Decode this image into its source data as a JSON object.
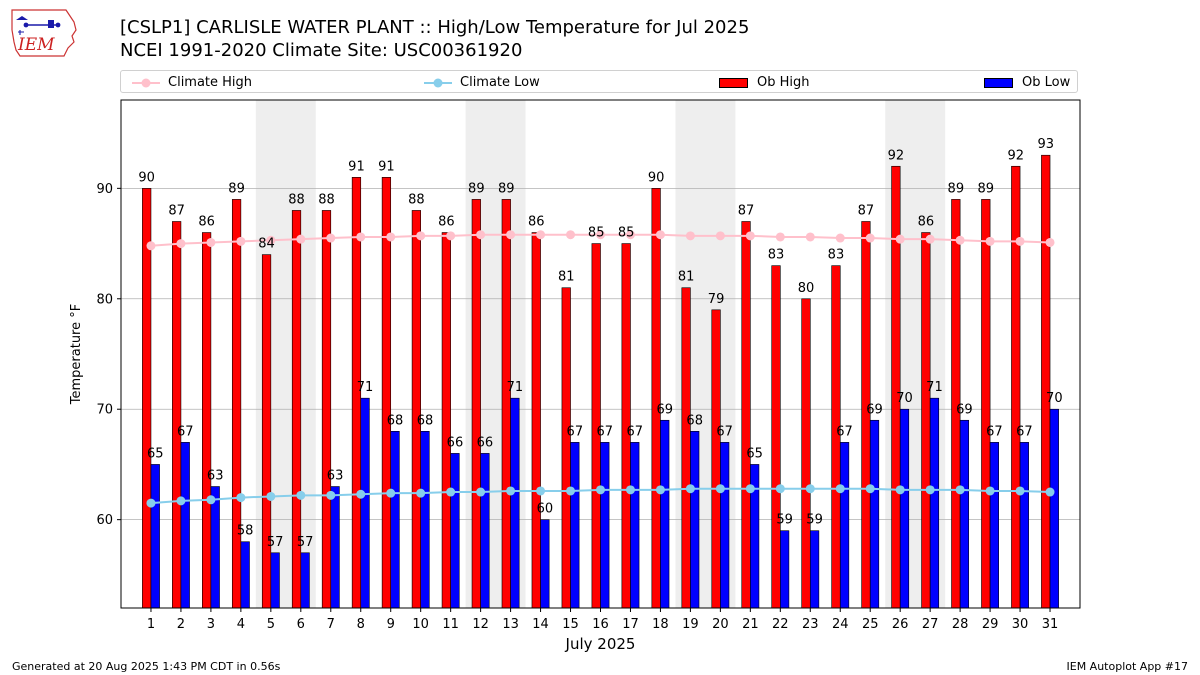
{
  "title_line1": "[CSLP1] CARLISLE WATER PLANT :: High/Low Temperature for Jul 2025",
  "title_line2": "NCEI 1991-2020 Climate Site: USC00361920",
  "logo_text": "IEM",
  "footer_left": "Generated at 20 Aug 2025 1:43 PM CDT in 0.56s",
  "footer_right": "IEM Autoplot App #17",
  "colors": {
    "ob_high": "#ff0000",
    "ob_low": "#0000ff",
    "climate_high": "#ffc0cb",
    "climate_low": "#87ceeb",
    "weekend_shade": "#eeeeee",
    "grid": "#b0b0b0"
  },
  "chart_data": {
    "type": "bar",
    "xlabel": "July 2025",
    "ylabel": "Temperature °F",
    "ylim": [
      52,
      98
    ],
    "yticks": [
      60,
      70,
      80,
      90
    ],
    "grid": "horizontal",
    "legend_position": "top",
    "categories": [
      "1",
      "2",
      "3",
      "4",
      "5",
      "6",
      "7",
      "8",
      "9",
      "10",
      "11",
      "12",
      "13",
      "14",
      "15",
      "16",
      "17",
      "18",
      "19",
      "20",
      "21",
      "22",
      "23",
      "24",
      "25",
      "26",
      "27",
      "28",
      "29",
      "30",
      "31"
    ],
    "shaded_days": [
      [
        5,
        6
      ],
      [
        12,
        13
      ],
      [
        19,
        20
      ],
      [
        26,
        27
      ]
    ],
    "series": [
      {
        "name": "Ob High",
        "kind": "bar",
        "values": [
          90,
          87,
          86,
          89,
          84,
          88,
          88,
          91,
          91,
          88,
          86,
          89,
          89,
          86,
          81,
          85,
          85,
          90,
          81,
          79,
          87,
          83,
          80,
          83,
          87,
          92,
          86,
          89,
          89,
          92,
          93
        ]
      },
      {
        "name": "Ob Low",
        "kind": "bar",
        "values": [
          65,
          67,
          63,
          58,
          57,
          57,
          63,
          71,
          68,
          68,
          66,
          66,
          71,
          60,
          67,
          67,
          67,
          69,
          68,
          67,
          65,
          59,
          59,
          67,
          69,
          70,
          71,
          69,
          67,
          67,
          70
        ]
      },
      {
        "name": "Climate High",
        "kind": "line",
        "values": [
          84.8,
          85.0,
          85.1,
          85.2,
          85.3,
          85.4,
          85.5,
          85.6,
          85.6,
          85.7,
          85.7,
          85.8,
          85.8,
          85.8,
          85.8,
          85.8,
          85.8,
          85.8,
          85.7,
          85.7,
          85.7,
          85.6,
          85.6,
          85.5,
          85.5,
          85.4,
          85.4,
          85.3,
          85.2,
          85.2,
          85.1
        ]
      },
      {
        "name": "Climate Low",
        "kind": "line",
        "values": [
          61.5,
          61.7,
          61.8,
          62.0,
          62.1,
          62.2,
          62.2,
          62.3,
          62.4,
          62.4,
          62.5,
          62.5,
          62.6,
          62.6,
          62.6,
          62.7,
          62.7,
          62.7,
          62.8,
          62.8,
          62.8,
          62.8,
          62.8,
          62.8,
          62.8,
          62.7,
          62.7,
          62.7,
          62.6,
          62.6,
          62.5
        ]
      }
    ]
  }
}
